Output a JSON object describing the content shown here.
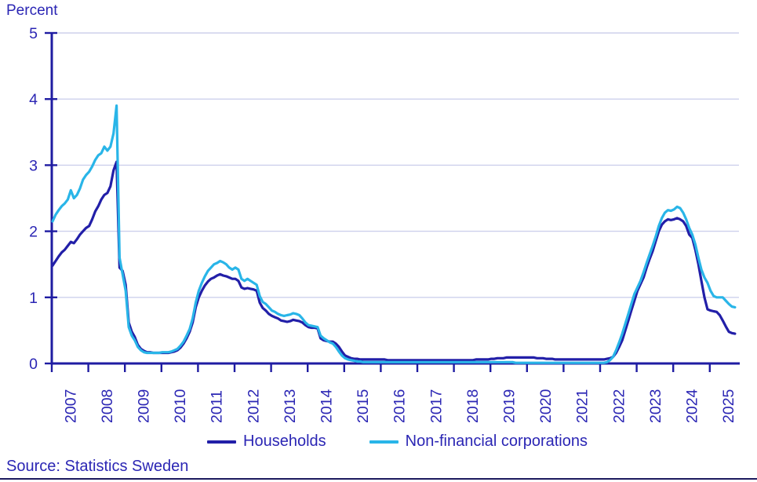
{
  "page": {
    "percent_label": "Percent",
    "source_text": "Source: Statistics Sweden"
  },
  "colors": {
    "axis": "#1f1ca2",
    "text": "#2b26b4",
    "gridline": "#cdd0ec",
    "households": "#221fa8",
    "corporations": "#29b5e8",
    "bottom_rule": "#1c1a5e"
  },
  "legend": {
    "items": [
      {
        "label": "Households",
        "color": "#221fa8"
      },
      {
        "label": "Non-financial corporations",
        "color": "#29b5e8"
      }
    ]
  },
  "chart_data": {
    "type": "line",
    "title": "",
    "ylabel": "Percent",
    "xlabel": "",
    "ylim": [
      0,
      5
    ],
    "y_ticks": [
      0,
      1,
      2,
      3,
      4,
      5
    ],
    "x_tick_labels": [
      "2007",
      "2008",
      "2009",
      "2010",
      "2011",
      "2012",
      "2013",
      "2014",
      "2015",
      "2016",
      "2017",
      "2018",
      "2019",
      "2020",
      "2021",
      "2022",
      "2023",
      "2024",
      "2025"
    ],
    "frequency": "monthly",
    "x_start": "2007-01",
    "x_end": "2025-09",
    "grid": "horizontal",
    "legend_position": "bottom",
    "series": [
      {
        "name": "Households",
        "color": "#221fa8",
        "values": [
          1.48,
          1.55,
          1.62,
          1.68,
          1.72,
          1.78,
          1.84,
          1.82,
          1.88,
          1.95,
          2.0,
          2.05,
          2.08,
          2.18,
          2.3,
          2.38,
          2.48,
          2.55,
          2.58,
          2.68,
          2.92,
          3.05,
          1.45,
          1.4,
          1.19,
          0.62,
          0.48,
          0.4,
          0.28,
          0.22,
          0.19,
          0.17,
          0.17,
          0.16,
          0.16,
          0.16,
          0.16,
          0.16,
          0.16,
          0.17,
          0.18,
          0.2,
          0.24,
          0.3,
          0.38,
          0.48,
          0.62,
          0.85,
          1.0,
          1.1,
          1.18,
          1.24,
          1.28,
          1.3,
          1.33,
          1.35,
          1.33,
          1.32,
          1.3,
          1.28,
          1.28,
          1.25,
          1.15,
          1.13,
          1.14,
          1.13,
          1.12,
          1.1,
          0.92,
          0.84,
          0.8,
          0.75,
          0.72,
          0.7,
          0.68,
          0.65,
          0.64,
          0.63,
          0.64,
          0.66,
          0.65,
          0.64,
          0.62,
          0.58,
          0.55,
          0.54,
          0.54,
          0.53,
          0.38,
          0.35,
          0.34,
          0.33,
          0.33,
          0.3,
          0.25,
          0.18,
          0.12,
          0.1,
          0.08,
          0.07,
          0.07,
          0.06,
          0.06,
          0.06,
          0.06,
          0.06,
          0.06,
          0.06,
          0.06,
          0.06,
          0.05,
          0.05,
          0.05,
          0.05,
          0.05,
          0.05,
          0.05,
          0.05,
          0.05,
          0.05,
          0.05,
          0.05,
          0.05,
          0.05,
          0.05,
          0.05,
          0.05,
          0.05,
          0.05,
          0.05,
          0.05,
          0.05,
          0.05,
          0.05,
          0.05,
          0.05,
          0.05,
          0.05,
          0.05,
          0.06,
          0.06,
          0.06,
          0.06,
          0.06,
          0.07,
          0.07,
          0.08,
          0.08,
          0.08,
          0.09,
          0.09,
          0.09,
          0.09,
          0.09,
          0.09,
          0.09,
          0.09,
          0.09,
          0.09,
          0.08,
          0.08,
          0.08,
          0.07,
          0.07,
          0.07,
          0.06,
          0.06,
          0.06,
          0.06,
          0.06,
          0.06,
          0.06,
          0.06,
          0.06,
          0.06,
          0.06,
          0.06,
          0.06,
          0.06,
          0.06,
          0.06,
          0.06,
          0.07,
          0.08,
          0.1,
          0.16,
          0.25,
          0.35,
          0.5,
          0.65,
          0.8,
          0.95,
          1.1,
          1.2,
          1.3,
          1.45,
          1.58,
          1.7,
          1.85,
          2.0,
          2.1,
          2.15,
          2.18,
          2.17,
          2.18,
          2.2,
          2.18,
          2.15,
          2.08,
          1.95,
          1.9,
          1.72,
          1.5,
          1.25,
          1.0,
          0.82,
          0.8,
          0.79,
          0.78,
          0.73,
          0.65,
          0.56,
          0.48,
          0.46,
          0.45
        ]
      },
      {
        "name": "Non-financial corporations",
        "color": "#29b5e8",
        "values": [
          2.15,
          2.25,
          2.32,
          2.38,
          2.42,
          2.48,
          2.62,
          2.5,
          2.55,
          2.65,
          2.78,
          2.85,
          2.9,
          2.98,
          3.08,
          3.15,
          3.18,
          3.28,
          3.22,
          3.28,
          3.48,
          3.9,
          1.6,
          1.35,
          1.1,
          0.55,
          0.42,
          0.35,
          0.25,
          0.2,
          0.17,
          0.16,
          0.16,
          0.16,
          0.16,
          0.16,
          0.17,
          0.17,
          0.17,
          0.18,
          0.2,
          0.22,
          0.27,
          0.33,
          0.42,
          0.52,
          0.68,
          0.92,
          1.1,
          1.22,
          1.32,
          1.4,
          1.45,
          1.5,
          1.52,
          1.55,
          1.53,
          1.5,
          1.45,
          1.42,
          1.45,
          1.42,
          1.28,
          1.25,
          1.28,
          1.25,
          1.22,
          1.19,
          1.02,
          0.93,
          0.9,
          0.85,
          0.8,
          0.78,
          0.75,
          0.73,
          0.72,
          0.73,
          0.74,
          0.76,
          0.75,
          0.73,
          0.68,
          0.62,
          0.58,
          0.57,
          0.56,
          0.55,
          0.42,
          0.38,
          0.35,
          0.32,
          0.3,
          0.25,
          0.18,
          0.12,
          0.08,
          0.06,
          0.05,
          0.04,
          0.03,
          0.03,
          0.02,
          0.02,
          0.02,
          0.02,
          0.02,
          0.02,
          0.02,
          0.02,
          0.02,
          0.02,
          0.02,
          0.02,
          0.02,
          0.02,
          0.02,
          0.02,
          0.02,
          0.02,
          0.02,
          0.02,
          0.02,
          0.02,
          0.02,
          0.02,
          0.02,
          0.02,
          0.02,
          0.02,
          0.02,
          0.02,
          0.02,
          0.02,
          0.02,
          0.02,
          0.02,
          0.02,
          0.02,
          0.02,
          0.02,
          0.02,
          0.02,
          0.02,
          0.02,
          0.02,
          0.02,
          0.02,
          0.02,
          0.02,
          0.02,
          0.02,
          0.01,
          0.01,
          0.01,
          0.01,
          0.01,
          0.01,
          0.01,
          0.01,
          0.01,
          0.01,
          0.01,
          0.01,
          0.01,
          0.01,
          0.01,
          0.01,
          0.01,
          0.01,
          0.01,
          0.01,
          0.01,
          0.01,
          0.01,
          0.01,
          0.01,
          0.01,
          0.01,
          0.01,
          0.01,
          0.01,
          0.02,
          0.05,
          0.1,
          0.2,
          0.32,
          0.45,
          0.6,
          0.75,
          0.9,
          1.05,
          1.15,
          1.25,
          1.38,
          1.52,
          1.65,
          1.78,
          1.92,
          2.08,
          2.2,
          2.28,
          2.32,
          2.31,
          2.33,
          2.37,
          2.35,
          2.28,
          2.18,
          2.05,
          1.95,
          1.8,
          1.6,
          1.42,
          1.3,
          1.22,
          1.1,
          1.02,
          1.0,
          1.0,
          1.0,
          0.95,
          0.9,
          0.86,
          0.85
        ]
      }
    ]
  }
}
